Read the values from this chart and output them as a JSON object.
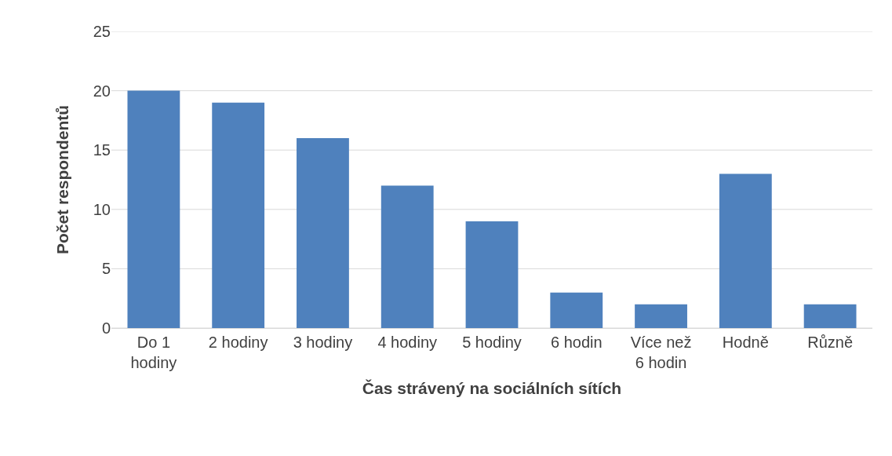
{
  "chart_data": {
    "type": "bar",
    "xlabel": "Čas strávený na sociálních sítích",
    "ylabel": "Počet respondentů",
    "categories": [
      "Do 1 hodiny",
      "2 hodiny",
      "3 hodiny",
      "4 hodiny",
      "5 hodiny",
      "6 hodin",
      "Více než 6 hodin",
      "Hodně",
      "Různě"
    ],
    "values": [
      20,
      19,
      16,
      12,
      9,
      3,
      2,
      13,
      2
    ],
    "color": "#4f81bd",
    "ylim": [
      0,
      25
    ],
    "yticks": [
      0,
      5,
      10,
      15,
      20,
      25
    ],
    "grid": "y"
  }
}
